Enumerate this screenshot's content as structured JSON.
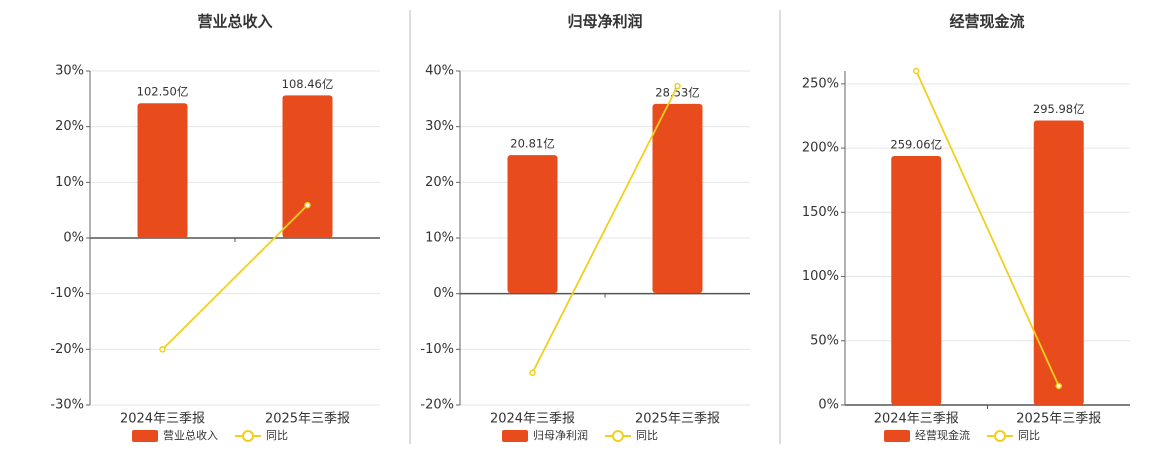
{
  "chart_data": [
    {
      "type": "bar_line",
      "title": "营业总收入",
      "categories": [
        "2024年三季报",
        "2025年三季报"
      ],
      "series": [
        {
          "name": "营业总收入",
          "type": "bar",
          "color": "#e84c1c",
          "axis": "y2",
          "values": [
            102.5,
            108.46
          ],
          "value_labels": [
            "102.50亿",
            "108.46亿"
          ]
        },
        {
          "name": "同比",
          "type": "line",
          "color": "#f0d01e",
          "values": [
            -20,
            5.9
          ]
        }
      ],
      "ylim": [
        -30,
        30
      ],
      "yticks": [
        {
          "value": -30,
          "label": "-30%"
        },
        {
          "value": -20,
          "label": "-20%"
        },
        {
          "value": -10,
          "label": "-10%"
        },
        {
          "value": 0,
          "label": "0%"
        },
        {
          "value": 10,
          "label": "10%"
        },
        {
          "value": 20,
          "label": "20%"
        },
        {
          "value": 30,
          "label": "30%"
        }
      ],
      "y2lim": [
        -127,
        127
      ],
      "grid": true,
      "legend": "bottom"
    },
    {
      "type": "bar_line",
      "title": "归母净利润",
      "categories": [
        "2024年三季报",
        "2025年三季报"
      ],
      "series": [
        {
          "name": "归母净利润",
          "type": "bar",
          "color": "#e84c1c",
          "axis": "y2",
          "values": [
            20.81,
            28.53
          ],
          "value_labels": [
            "20.81亿",
            "28.53亿"
          ]
        },
        {
          "name": "同比",
          "type": "line",
          "color": "#f0d01e",
          "values": [
            -14.2,
            37.3
          ]
        }
      ],
      "ylim": [
        -20,
        40
      ],
      "yticks": [
        {
          "value": -20,
          "label": "-20%"
        },
        {
          "value": -10,
          "label": "-10%"
        },
        {
          "value": 0,
          "label": "0%"
        },
        {
          "value": 10,
          "label": "10%"
        },
        {
          "value": 20,
          "label": "20%"
        },
        {
          "value": 30,
          "label": "30%"
        },
        {
          "value": 40,
          "label": "40%"
        }
      ],
      "y2lim": [
        -16.9,
        33.5
      ],
      "grid": true,
      "legend": "bottom"
    },
    {
      "type": "bar_line",
      "title": "经营现金流",
      "categories": [
        "2024年三季报",
        "2025年三季报"
      ],
      "series": [
        {
          "name": "经营现金流",
          "type": "bar",
          "color": "#e84c1c",
          "axis": "y2",
          "values": [
            259.06,
            295.98
          ],
          "value_labels": [
            "259.06亿",
            "295.98亿"
          ]
        },
        {
          "name": "同比",
          "type": "line",
          "color": "#f0d01e",
          "values": [
            260,
            14.8
          ]
        }
      ],
      "ylim": [
        0,
        260
      ],
      "yticks": [
        {
          "value": 0,
          "label": "0%"
        },
        {
          "value": 50,
          "label": "50%"
        },
        {
          "value": 100,
          "label": "100%"
        },
        {
          "value": 150,
          "label": "150%"
        },
        {
          "value": 200,
          "label": "200%"
        },
        {
          "value": 250,
          "label": "250%"
        }
      ],
      "y2lim": [
        0,
        347.5
      ],
      "grid": true,
      "legend": "bottom"
    }
  ]
}
